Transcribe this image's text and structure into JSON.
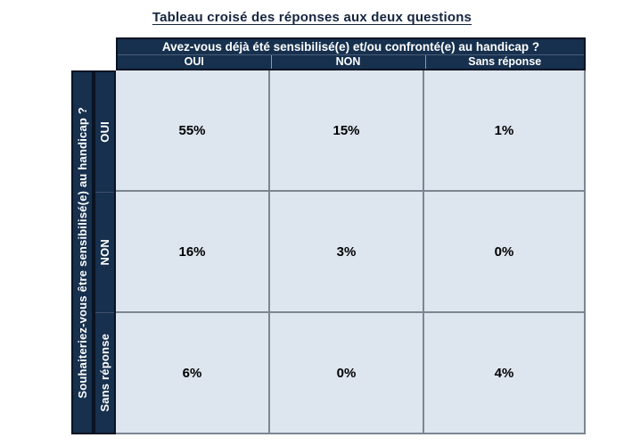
{
  "title": "Tableau croisé des réponses aux deux questions",
  "table": {
    "col_question": "Avez-vous déjà été sensibilisé(e) et/ou confronté(e) au handicap ?",
    "row_question": "Souhaiteriez-vous être sensibilisé(e) au handicap ?",
    "col_headers": [
      "OUI",
      "NON",
      "Sans réponse"
    ],
    "row_headers": [
      "OUI",
      "NON",
      "Sans réponse"
    ],
    "cells": [
      [
        "55%",
        "15%",
        "1%"
      ],
      [
        "16%",
        "3%",
        "0%"
      ],
      [
        "6%",
        "0%",
        "4%"
      ]
    ]
  },
  "chart_data": {
    "type": "table",
    "title": "Tableau croisé des réponses aux deux questions",
    "column_question": "Avez-vous déjà été sensibilisé(e) et/ou confronté(e) au handicap ?",
    "row_question": "Souhaiteriez-vous être sensibilisé(e) au handicap ?",
    "columns": [
      "OUI",
      "NON",
      "Sans réponse"
    ],
    "rows": [
      "OUI",
      "NON",
      "Sans réponse"
    ],
    "values_percent": [
      [
        55,
        15,
        1
      ],
      [
        16,
        3,
        0
      ],
      [
        6,
        0,
        4
      ]
    ]
  },
  "colors": {
    "header_bg": "#16304E",
    "header_text": "#ffffff",
    "cell_bg": "#DDE5EF",
    "grid_line": "#7b8691",
    "frame_line": "#0a1322",
    "title_text": "#15253f",
    "cell_text": "#000000",
    "page_bg": "#ffffff"
  }
}
